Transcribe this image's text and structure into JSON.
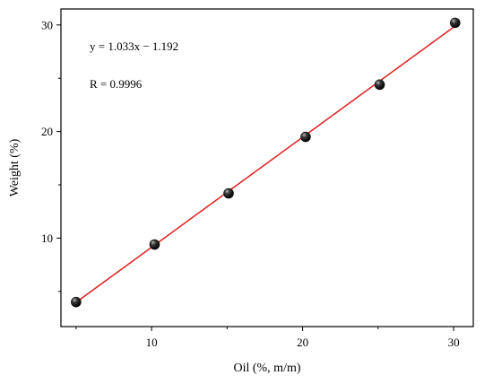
{
  "chart_data": {
    "type": "scatter",
    "xlabel": "Oil (%, m/m)",
    "ylabel": "Weight (%)",
    "xlim": [
      4,
      31.3
    ],
    "ylim": [
      1.7,
      31.5
    ],
    "xticks": [
      10,
      20,
      30
    ],
    "yticks": [
      10,
      20,
      30
    ],
    "grid": false,
    "series": [
      {
        "x": [
          5,
          10.2,
          15.1,
          20.2,
          25.1,
          30.1
        ],
        "y": [
          4.0,
          9.4,
          14.2,
          19.5,
          24.4,
          30.2
        ],
        "marker_color": "#111111"
      }
    ],
    "fit_line": {
      "slope": 1.033,
      "intercept": -1.192,
      "x_range": [
        5,
        30.1
      ],
      "color": "#e02020"
    },
    "annotations": [
      {
        "text": "y = 1.033x − 1.192"
      },
      {
        "text": "R = 0.9996"
      }
    ]
  }
}
